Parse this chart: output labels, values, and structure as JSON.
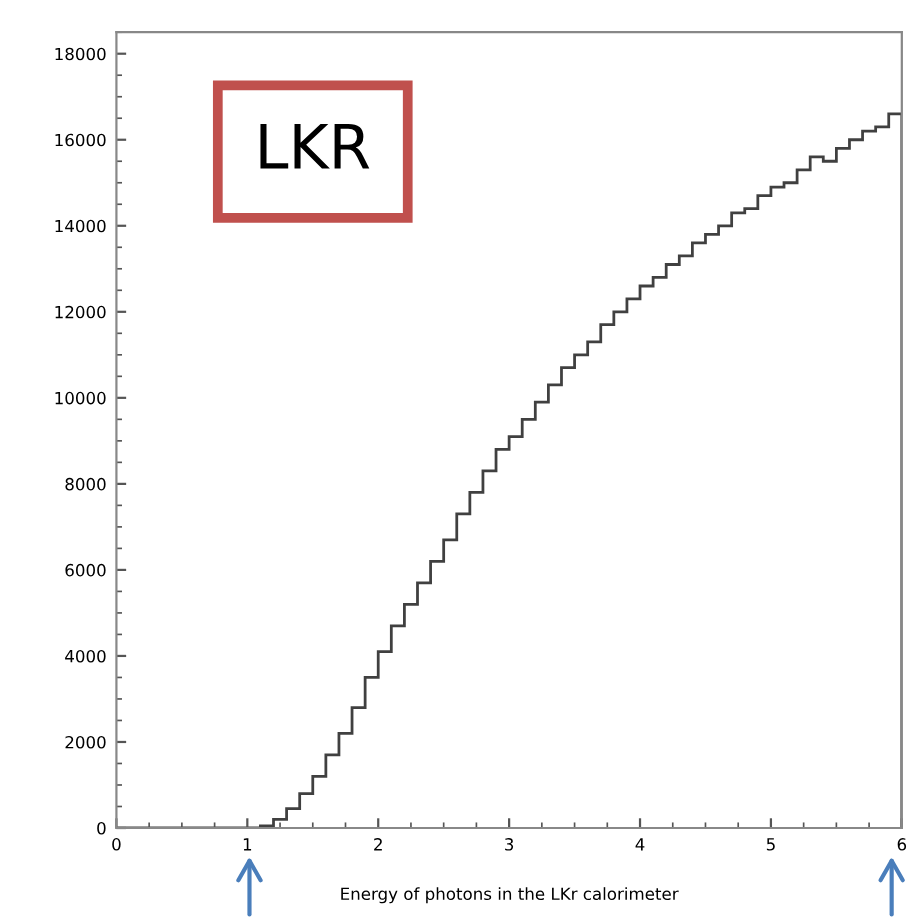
{
  "chart_data": {
    "type": "histogram",
    "xlabel": "Energy of photons in the LKr calorimeter",
    "annotations": [
      "LKR"
    ],
    "color": "#404040",
    "bins": [
      0,
      0.1,
      0.2,
      0.3,
      0.4,
      0.5,
      0.6,
      0.7,
      0.8,
      0.9,
      1.0,
      1.1,
      1.2,
      1.3,
      1.4,
      1.5,
      1.6,
      1.7,
      1.8,
      1.9,
      2.0,
      2.1,
      2.2,
      2.3,
      2.4,
      2.5,
      2.6,
      2.7,
      2.8,
      2.9,
      3.0,
      3.1,
      3.2,
      3.3,
      3.4,
      3.5,
      3.6,
      3.7,
      3.8,
      3.9,
      4.0,
      4.1,
      4.2,
      4.3,
      4.4,
      4.5,
      4.6,
      4.7,
      4.8,
      4.9,
      5.0,
      5.1,
      5.2,
      5.3,
      5.4,
      5.5,
      5.6,
      5.7,
      5.8,
      5.9,
      6.0
    ],
    "values": [
      0,
      0,
      0,
      0,
      0,
      0,
      0,
      0,
      0,
      0,
      0,
      50,
      200,
      450,
      800,
      1200,
      1700,
      2200,
      2800,
      3500,
      4100,
      4700,
      5200,
      5700,
      6200,
      6700,
      7300,
      7800,
      8300,
      8800,
      9100,
      9500,
      9900,
      10300,
      10700,
      11000,
      11300,
      11700,
      12000,
      12300,
      12600,
      12800,
      13100,
      13300,
      13600,
      13800,
      14000,
      14300,
      14400,
      14700,
      14900,
      15000,
      15300,
      15600,
      15500,
      15800,
      16000,
      16200,
      16300,
      16600
    ],
    "xlim": [
      0,
      6
    ],
    "xticks": [
      0,
      1,
      2,
      3,
      4,
      5,
      6
    ],
    "ylim": [
      0,
      18500
    ],
    "yticks": [
      0,
      2000,
      4000,
      6000,
      8000,
      10000,
      12000,
      14000,
      16000,
      18000
    ],
    "grid": false
  }
}
